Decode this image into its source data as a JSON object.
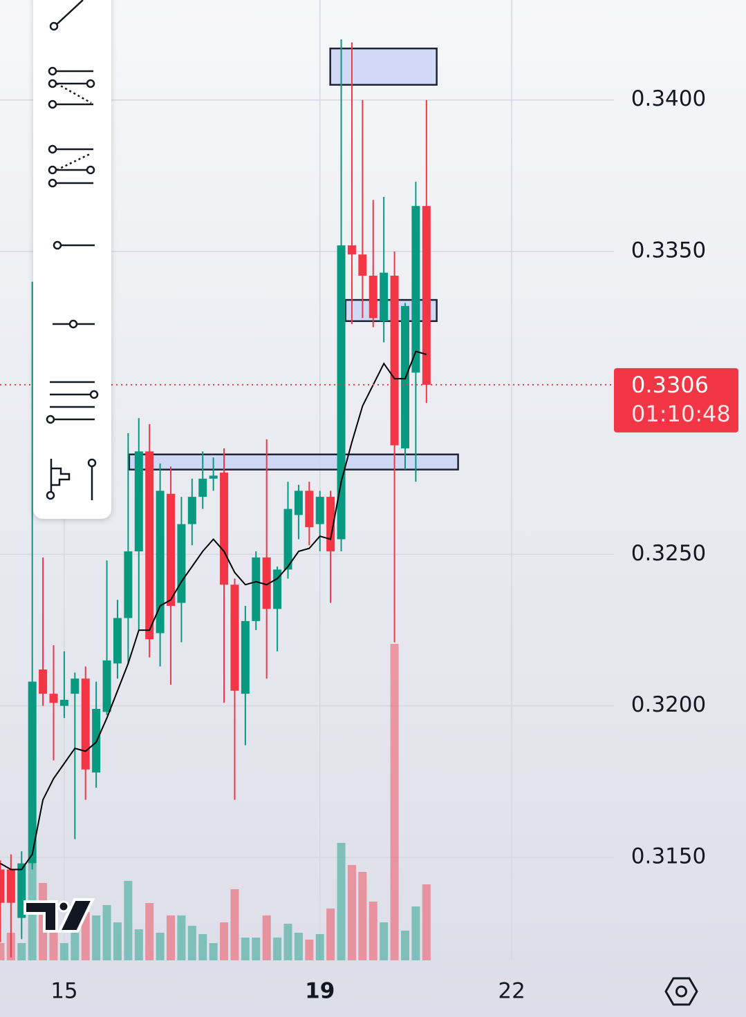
{
  "chart_data": {
    "type": "candlestick",
    "x": [
      14.0,
      14.1667,
      14.3333,
      14.5,
      14.6667,
      14.8333,
      15.0,
      15.1667,
      15.3333,
      15.5,
      15.6667,
      15.8333,
      16.0,
      16.1667,
      16.3333,
      16.5,
      16.6667,
      16.8333,
      17.0,
      17.1667,
      17.3333,
      17.5,
      17.6667,
      17.8333,
      18.0,
      18.1667,
      18.3333,
      18.5,
      18.6667,
      18.8333,
      19.0,
      19.1667,
      19.3333,
      19.5,
      19.6667,
      19.8333,
      20.0,
      20.1667,
      20.3333,
      20.5,
      20.6667
    ],
    "open": [
      0.3146,
      0.3146,
      0.313,
      0.3148,
      0.3212,
      0.3204,
      0.32,
      0.3204,
      0.3209,
      0.3178,
      0.3198,
      0.3214,
      0.3229,
      0.3251,
      0.3284,
      0.3224,
      0.327,
      0.3234,
      0.326,
      0.3269,
      0.3275,
      0.3277,
      0.324,
      0.3204,
      0.3228,
      0.3249,
      0.3232,
      0.3245,
      0.3263,
      0.3271,
      0.326,
      0.3269,
      0.3255,
      0.3352,
      0.3349,
      0.3342,
      0.3327,
      0.3342,
      0.3285,
      0.331,
      0.3365
    ],
    "high": [
      0.3149,
      0.3151,
      0.3152,
      0.334,
      0.3249,
      0.322,
      0.3218,
      0.3211,
      0.3213,
      0.3208,
      0.3248,
      0.3235,
      0.329,
      0.3295,
      0.3293,
      0.328,
      0.3279,
      0.3269,
      0.3275,
      0.3284,
      0.3282,
      0.3285,
      0.3242,
      0.3233,
      0.3251,
      0.3288,
      0.3246,
      0.3274,
      0.3273,
      0.3274,
      0.3271,
      0.3271,
      0.342,
      0.3419,
      0.34,
      0.3367,
      0.3368,
      0.335,
      0.3333,
      0.3373,
      0.34
    ],
    "low": [
      0.3122,
      0.3117,
      0.3123,
      0.3146,
      0.32,
      0.3182,
      0.3196,
      0.3156,
      0.3169,
      0.3173,
      0.3197,
      0.3209,
      0.3214,
      0.3225,
      0.3216,
      0.3213,
      0.3207,
      0.3221,
      0.3253,
      0.3265,
      0.3271,
      0.3201,
      0.3169,
      0.3187,
      0.3225,
      0.3209,
      0.3218,
      0.3242,
      0.3255,
      0.3253,
      0.3251,
      0.3234,
      0.3251,
      0.3326,
      0.3328,
      0.3325,
      0.332,
      0.3221,
      0.3278,
      0.3274,
      0.33
    ],
    "close": [
      0.3135,
      0.3135,
      0.3148,
      0.3208,
      0.3204,
      0.3201,
      0.3202,
      0.3209,
      0.3179,
      0.3199,
      0.3215,
      0.3229,
      0.3251,
      0.3284,
      0.3222,
      0.3271,
      0.3233,
      0.326,
      0.3269,
      0.3275,
      0.3276,
      0.324,
      0.3205,
      0.3228,
      0.3249,
      0.3232,
      0.3245,
      0.3265,
      0.3271,
      0.3259,
      0.3269,
      0.3251,
      0.3352,
      0.3349,
      0.3342,
      0.3328,
      0.3343,
      0.3286,
      0.3332,
      0.3365,
      0.3306
    ],
    "volume": [
      25,
      40,
      25,
      140,
      112,
      70,
      25,
      45,
      70,
      65,
      80,
      55,
      115,
      45,
      83,
      40,
      65,
      65,
      50,
      38,
      25,
      55,
      103,
      33,
      33,
      65,
      33,
      53,
      40,
      30,
      38,
      75,
      170,
      138,
      128,
      85,
      55,
      458,
      43,
      78,
      110
    ],
    "ma": {
      "color": "#000000",
      "values": [
        0.3148,
        0.3146,
        0.3146,
        0.3151,
        0.3169,
        0.3176,
        0.3181,
        0.3186,
        0.3185,
        0.3188,
        0.3196,
        0.3205,
        0.3214,
        0.3225,
        0.3225,
        0.3233,
        0.3235,
        0.3241,
        0.3246,
        0.3251,
        0.3255,
        0.3251,
        0.3244,
        0.324,
        0.3241,
        0.324,
        0.3242,
        0.3246,
        0.3251,
        0.3252,
        0.3256,
        0.3255,
        0.3274,
        0.3287,
        0.3299,
        0.3306,
        0.3313,
        0.3308,
        0.3308,
        0.3317,
        0.3316
      ]
    },
    "up_color": "#089981",
    "down_color": "#f23645",
    "zones": [
      {
        "x": [
          19.162,
          20.827
        ],
        "y": [
          0.3405,
          0.3417
        ]
      },
      {
        "x": [
          19.4,
          20.827
        ],
        "y": [
          0.3327,
          0.3334
        ]
      },
      {
        "x": [
          16.016,
          21.162
        ],
        "y": [
          0.3278,
          0.3283
        ]
      }
    ],
    "zone_color": "#c9d4f5",
    "last_price": 0.3306,
    "countdown": "01:10:48",
    "xlim": [
      13.995,
      23.6
    ],
    "ylim": [
      0.3116,
      0.3433
    ],
    "xticks": [
      15,
      19,
      22
    ],
    "yticks": [
      {
        "value": 0.315,
        "label": "0.3150"
      },
      {
        "value": 0.32,
        "label": "0.3200"
      },
      {
        "value": 0.325,
        "label": "0.3250"
      },
      {
        "value": 0.335,
        "label": "0.3350"
      },
      {
        "value": 0.34,
        "label": "0.3400"
      }
    ],
    "grid": true
  }
}
